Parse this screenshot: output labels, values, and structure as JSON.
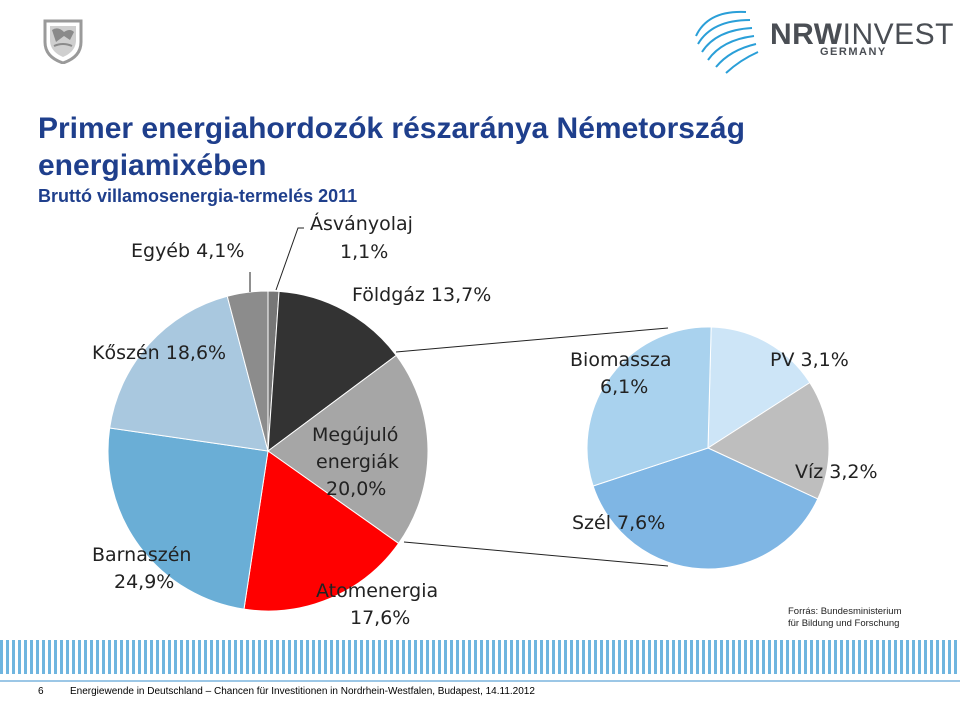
{
  "header": {
    "logo_nrw": "NRW",
    "logo_invest": "INVEST",
    "logo_sub": "GERMANY"
  },
  "title": "Primer energiahordozók részaránya Németország energiamixében",
  "subtitle": "Bruttó villamosenergia-termelés 2011",
  "chart_data": [
    {
      "type": "pie",
      "title": "Bruttó villamosenergia-termelés 2011",
      "unit": "%",
      "slices": [
        {
          "name": "Ásványolaj",
          "value": 1.1,
          "label_lines": [
            "Ásványolaj",
            "1,1%"
          ],
          "color": "#777777"
        },
        {
          "name": "Földgáz",
          "value": 13.7,
          "label_lines": [
            "Földgáz 13,7%"
          ],
          "color": "#333333"
        },
        {
          "name": "Megújuló energiák",
          "value": 20.0,
          "label_lines": [
            "Megújuló",
            "energiák",
            "20,0%"
          ],
          "color": "#a6a6a6"
        },
        {
          "name": "Atomenergia",
          "value": 17.6,
          "label_lines": [
            "Atomenergia",
            "17,6%"
          ],
          "color": "#ff0000"
        },
        {
          "name": "Barnaszén",
          "value": 24.9,
          "label_lines": [
            "Barnaszén",
            "24,9%"
          ],
          "color": "#6aaed6"
        },
        {
          "name": "Kőszén",
          "value": 18.6,
          "label_lines": [
            "Kőszén 18,6%"
          ],
          "color": "#a9c8df"
        },
        {
          "name": "Egyéb",
          "value": 4.1,
          "label_lines": [
            "Egyéb 4,1%"
          ],
          "color": "#8c8c8c"
        }
      ]
    },
    {
      "type": "pie",
      "title": "Megújuló energiák 20,0%",
      "unit": "%",
      "slices": [
        {
          "name": "PV",
          "value": 3.1,
          "label_lines": [
            "PV 3,1%"
          ],
          "color": "#cde5f7"
        },
        {
          "name": "Víz",
          "value": 3.2,
          "label_lines": [
            "Víz 3,2%"
          ],
          "color": "#bebebe"
        },
        {
          "name": "Szél",
          "value": 7.6,
          "label_lines": [
            "Szél 7,6%"
          ],
          "color": "#7fb6e4"
        },
        {
          "name": "Biomassza",
          "value": 6.1,
          "label_lines": [
            "Biomassza",
            "6,1%"
          ],
          "color": "#a9d2ee"
        }
      ]
    }
  ],
  "source": {
    "line1": "Forrás: Bundesministerium",
    "line2": "für Bildung und Forschung"
  },
  "footer": {
    "page": "6",
    "text": "Energiewende in Deutschland – Chancen für Investitionen in Nordrhein-Westfalen, Budapest, 14.11.2012"
  }
}
